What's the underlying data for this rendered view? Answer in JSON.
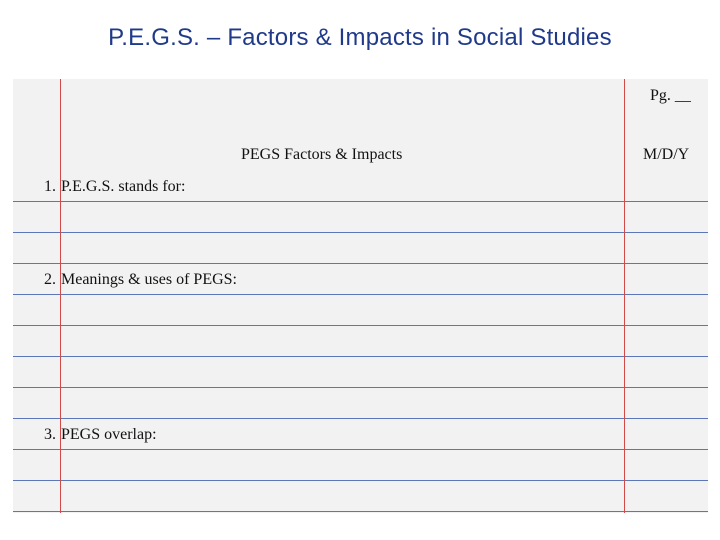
{
  "title": "P.E.G.S. – Factors & Impacts in Social Studies",
  "page_label": "Pg. __",
  "notes_title": "PEGS Factors & Impacts",
  "date_label": "M/D/Y",
  "items": [
    {
      "number": "1.",
      "text": "P.E.G.S. stands for:"
    },
    {
      "number": "2.",
      "text": "Meanings & uses of PEGS:"
    },
    {
      "number": "3.",
      "text": "PEGS overlap:"
    }
  ],
  "colors": {
    "title": "#1f3a8a",
    "rule_line": "#5b77b8",
    "margin_line": "#d04a4a",
    "paper": "#f2f2f2"
  }
}
